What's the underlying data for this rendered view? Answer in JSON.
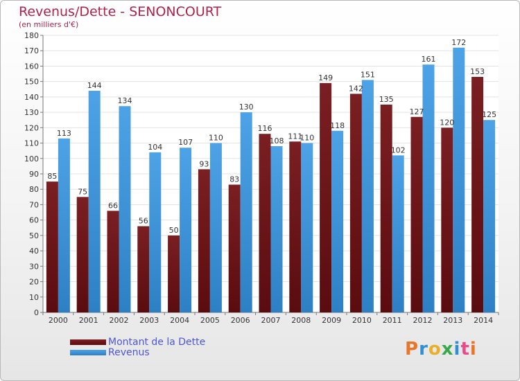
{
  "title": "Revenus/Dette - SENONCOURT",
  "subtitle": "(en milliers d'€)",
  "colors": {
    "debt": "#7a1f22",
    "debt_dark": "#5a0c0f",
    "revenue": "#4da3e6",
    "revenue_dark": "#2e80c4",
    "title": "#b0224a",
    "legend_text": "#4d57d6"
  },
  "legend": {
    "debt_label": "Montant de la Dette",
    "revenue_label": "Revenus"
  },
  "logo": {
    "text": "Proxiti",
    "letter_colors": [
      "#e8762a",
      "#2f8fd6",
      "#e8b02a",
      "#3aa84a",
      "#2f8fd6",
      "#e84a8a",
      "#e8762a"
    ]
  },
  "chart_data": {
    "type": "bar",
    "title": "Revenus/Dette - SENONCOURT",
    "ylabel": "(en milliers d'€)",
    "xlabel": "",
    "ylim": [
      0,
      180
    ],
    "y_ticks": [
      0,
      10,
      20,
      30,
      40,
      50,
      60,
      70,
      80,
      90,
      100,
      110,
      120,
      130,
      140,
      150,
      160,
      170,
      180
    ],
    "grid": true,
    "categories": [
      "2000",
      "2001",
      "2002",
      "2003",
      "2004",
      "2005",
      "2006",
      "2007",
      "2008",
      "2009",
      "2010",
      "2011",
      "2012",
      "2013",
      "2014"
    ],
    "series": [
      {
        "name": "Montant de la Dette",
        "values": [
          85,
          75,
          66,
          56,
          50,
          93,
          83,
          116,
          111,
          149,
          142,
          135,
          127,
          120,
          153
        ]
      },
      {
        "name": "Revenus",
        "values": [
          113,
          144,
          134,
          104,
          107,
          110,
          130,
          108,
          110,
          118,
          151,
          102,
          161,
          172,
          125
        ]
      }
    ]
  }
}
